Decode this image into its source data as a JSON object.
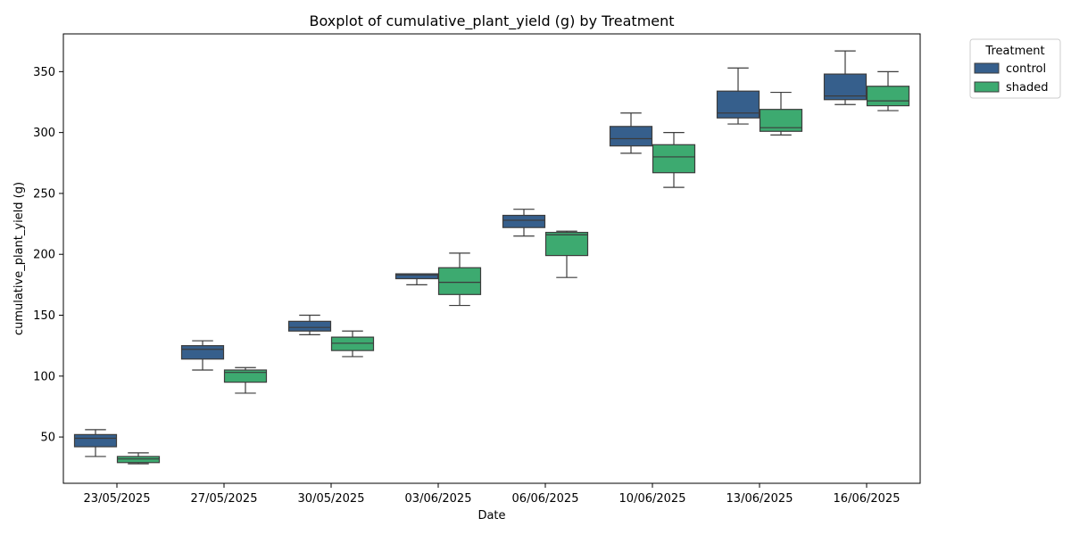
{
  "chart_data": {
    "type": "boxplot",
    "title": "Boxplot of cumulative_plant_yield (g) by Treatment",
    "xlabel": "Date",
    "ylabel": "cumulative_plant_yield (g)",
    "ylim": [
      12,
      381
    ],
    "yticks": [
      50,
      100,
      150,
      200,
      250,
      300,
      350
    ],
    "grid": false,
    "legend": {
      "title": "Treatment",
      "placement": "outside-top-right"
    },
    "categories": [
      "23/05/2025",
      "27/05/2025",
      "30/05/2025",
      "03/06/2025",
      "06/06/2025",
      "10/06/2025",
      "13/06/2025",
      "16/06/2025"
    ],
    "series": [
      {
        "name": "control",
        "color": "#365f8c",
        "boxes": [
          {
            "whislo": 34,
            "q1": 42,
            "med": 49,
            "q3": 52,
            "whishi": 56
          },
          {
            "whislo": 105,
            "q1": 114,
            "med": 122,
            "q3": 125,
            "whishi": 129
          },
          {
            "whislo": 134,
            "q1": 137,
            "med": 140,
            "q3": 145,
            "whishi": 150
          },
          {
            "whislo": 175,
            "q1": 180,
            "med": 183,
            "q3": 184,
            "whishi": 184
          },
          {
            "whislo": 215,
            "q1": 222,
            "med": 228,
            "q3": 232,
            "whishi": 237
          },
          {
            "whislo": 283,
            "q1": 289,
            "med": 295,
            "q3": 305,
            "whishi": 316
          },
          {
            "whislo": 307,
            "q1": 312,
            "med": 316,
            "q3": 334,
            "whishi": 353
          },
          {
            "whislo": 323,
            "q1": 327,
            "med": 330,
            "q3": 348,
            "whishi": 367
          }
        ]
      },
      {
        "name": "shaded",
        "color": "#3daa70",
        "boxes": [
          {
            "whislo": 28,
            "q1": 29,
            "med": 32,
            "q3": 34,
            "whishi": 37
          },
          {
            "whislo": 86,
            "q1": 95,
            "med": 103,
            "q3": 105,
            "whishi": 107
          },
          {
            "whislo": 116,
            "q1": 121,
            "med": 127,
            "q3": 132,
            "whishi": 137
          },
          {
            "whislo": 158,
            "q1": 167,
            "med": 177,
            "q3": 189,
            "whishi": 201
          },
          {
            "whislo": 181,
            "q1": 199,
            "med": 216,
            "q3": 218,
            "whishi": 219
          },
          {
            "whislo": 255,
            "q1": 267,
            "med": 280,
            "q3": 290,
            "whishi": 300
          },
          {
            "whislo": 298,
            "q1": 301,
            "med": 304,
            "q3": 319,
            "whishi": 333
          },
          {
            "whislo": 318,
            "q1": 322,
            "med": 326,
            "q3": 338,
            "whishi": 350
          }
        ]
      }
    ]
  }
}
